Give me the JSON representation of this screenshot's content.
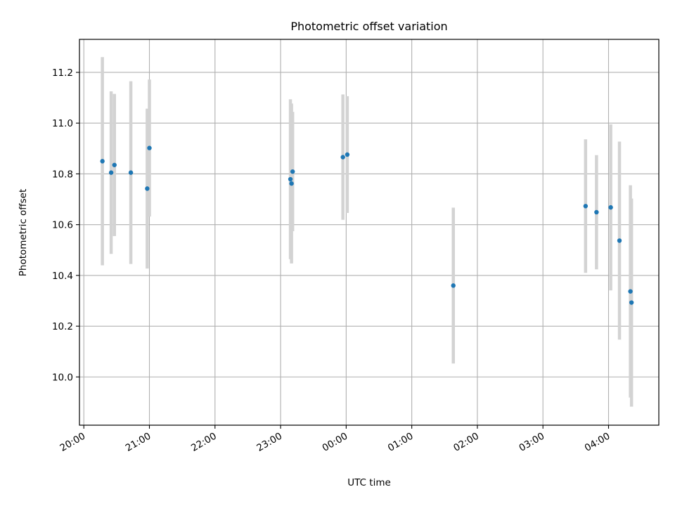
{
  "chart_data": {
    "type": "scatter",
    "title": "Photometric offset variation",
    "xlabel": "UTC time",
    "ylabel": "Photometric offset",
    "x_axis": {
      "type": "time",
      "range": [
        "2000-01-01T19:56",
        "2000-01-02T04:46"
      ],
      "ticks": [
        {
          "t": "2000-01-01T20:00",
          "label": "20:00"
        },
        {
          "t": "2000-01-01T21:00",
          "label": "21:00"
        },
        {
          "t": "2000-01-01T22:00",
          "label": "22:00"
        },
        {
          "t": "2000-01-01T23:00",
          "label": "23:00"
        },
        {
          "t": "2000-01-02T00:00",
          "label": "00:00"
        },
        {
          "t": "2000-01-02T01:00",
          "label": "01:00"
        },
        {
          "t": "2000-01-02T02:00",
          "label": "02:00"
        },
        {
          "t": "2000-01-02T03:00",
          "label": "03:00"
        },
        {
          "t": "2000-01-02T04:00",
          "label": "04:00"
        }
      ]
    },
    "y_axis": {
      "range": [
        9.81,
        11.33
      ],
      "ticks": [
        10.0,
        10.2,
        10.4,
        10.6,
        10.8,
        11.0,
        11.2
      ],
      "tick_labels": [
        "10.0",
        "10.2",
        "10.4",
        "10.6",
        "10.8",
        "11.0",
        "11.2"
      ]
    },
    "grid": true,
    "marker_color": "#1f77b4",
    "errorbar_color": "#d3d3d3",
    "points": [
      {
        "t": "2000-01-01T20:17",
        "y": 10.85,
        "err": 0.41
      },
      {
        "t": "2000-01-01T20:25",
        "y": 10.805,
        "err": 0.32
      },
      {
        "t": "2000-01-01T20:28",
        "y": 10.835,
        "err": 0.28
      },
      {
        "t": "2000-01-01T20:43",
        "y": 10.805,
        "err": 0.36
      },
      {
        "t": "2000-01-01T20:58",
        "y": 10.742,
        "err": 0.315
      },
      {
        "t": "2000-01-01T21:00",
        "y": 10.902,
        "err": 0.27
      },
      {
        "t": "2000-01-01T23:09",
        "y": 10.779,
        "err": 0.315
      },
      {
        "t": "2000-01-01T23:10",
        "y": 10.762,
        "err": 0.315
      },
      {
        "t": "2000-01-01T23:11",
        "y": 10.809,
        "err": 0.235
      },
      {
        "t": "2000-01-01T23:57",
        "y": 10.866,
        "err": 0.247
      },
      {
        "t": "2000-01-02T00:01",
        "y": 10.876,
        "err": 0.23
      },
      {
        "t": "2000-01-02T01:38",
        "y": 10.36,
        "err": 0.307
      },
      {
        "t": "2000-01-02T03:39",
        "y": 10.673,
        "err": 0.263
      },
      {
        "t": "2000-01-02T03:49",
        "y": 10.649,
        "err": 0.225
      },
      {
        "t": "2000-01-02T04:02",
        "y": 10.668,
        "err": 0.327
      },
      {
        "t": "2000-01-02T04:10",
        "y": 10.537,
        "err": 0.39
      },
      {
        "t": "2000-01-02T04:20",
        "y": 10.337,
        "err": 0.418
      },
      {
        "t": "2000-01-02T04:21",
        "y": 10.293,
        "err": 0.41
      }
    ]
  }
}
